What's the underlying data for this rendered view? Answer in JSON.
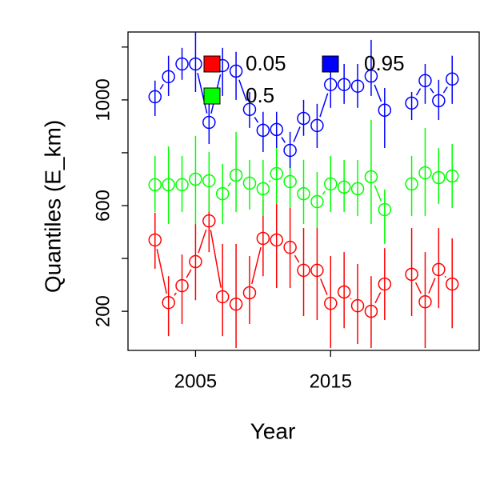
{
  "chart_data": {
    "type": "scatter",
    "x_label": "Year",
    "y_label": "Quantiles (E_km)",
    "x": [
      2002,
      2003,
      2004,
      2005,
      2006,
      2007,
      2008,
      2009,
      2010,
      2011,
      2012,
      2013,
      2014,
      2015,
      2016,
      2017,
      2018,
      2019,
      2020,
      2021,
      2022,
      2023,
      2024
    ],
    "xlim": [
      2000,
      2026
    ],
    "ylim": [
      52,
      1257
    ],
    "xticks": [
      2005,
      2015
    ],
    "yticks": [
      200,
      {
        "value": 400,
        "label": null
      },
      600,
      {
        "value": 800,
        "label": null
      },
      1000,
      {
        "value": 1200,
        "label": null
      }
    ],
    "legend_position": "top",
    "series": [
      {
        "name": "0.05",
        "color": "#ff0000",
        "values": [
          470,
          233,
          297,
          388,
          542,
          255,
          227,
          270,
          476,
          470,
          442,
          355,
          355,
          230,
          273,
          221,
          200,
          303,
          null,
          340,
          236,
          358,
          303
        ],
        "lower": [
          361,
          106,
          152,
          242,
          424,
          106,
          61,
          152,
          333,
          288,
          288,
          182,
          167,
          61,
          136,
          76,
          61,
          167,
          null,
          182,
          61,
          212,
          136
        ],
        "upper": [
          573,
          333,
          415,
          530,
          658,
          455,
          455,
          409,
          621,
          636,
          591,
          515,
          515,
          409,
          424,
          379,
          333,
          439,
          null,
          515,
          424,
          515,
          476
        ]
      },
      {
        "name": "0.5",
        "color": "#00ff00",
        "values": [
          679,
          679,
          679,
          700,
          694,
          645,
          715,
          685,
          664,
          721,
          691,
          645,
          615,
          682,
          670,
          664,
          709,
          585,
          null,
          682,
          724,
          706,
          712
        ],
        "lower": [
          576,
          530,
          576,
          530,
          576,
          530,
          576,
          585,
          561,
          606,
          591,
          530,
          515,
          576,
          576,
          561,
          530,
          455,
          null,
          561,
          561,
          606,
          591
        ],
        "upper": [
          788,
          824,
          788,
          864,
          803,
          758,
          879,
          773,
          773,
          818,
          788,
          773,
          727,
          788,
          773,
          773,
          924,
          661,
          null,
          788,
          894,
          818,
          833
        ]
      },
      {
        "name": "0.95",
        "color": "#0000ff",
        "values": [
          1012,
          1088,
          1136,
          1136,
          915,
          1130,
          1109,
          964,
          885,
          888,
          809,
          930,
          903,
          1058,
          1058,
          1052,
          1090,
          961,
          null,
          988,
          1073,
          997,
          1079
        ],
        "lower": [
          939,
          1015,
          1076,
          1030,
          833,
          1015,
          1000,
          894,
          803,
          818,
          742,
          864,
          818,
          970,
          985,
          970,
          1015,
          818,
          null,
          924,
          985,
          924,
          985
        ],
        "upper": [
          1073,
          1167,
          1197,
          1264,
          985,
          1197,
          1182,
          1030,
          955,
          955,
          879,
          1000,
          985,
          1136,
          1136,
          1136,
          1227,
          1045,
          null,
          1030,
          1136,
          1076,
          1167
        ]
      }
    ]
  }
}
